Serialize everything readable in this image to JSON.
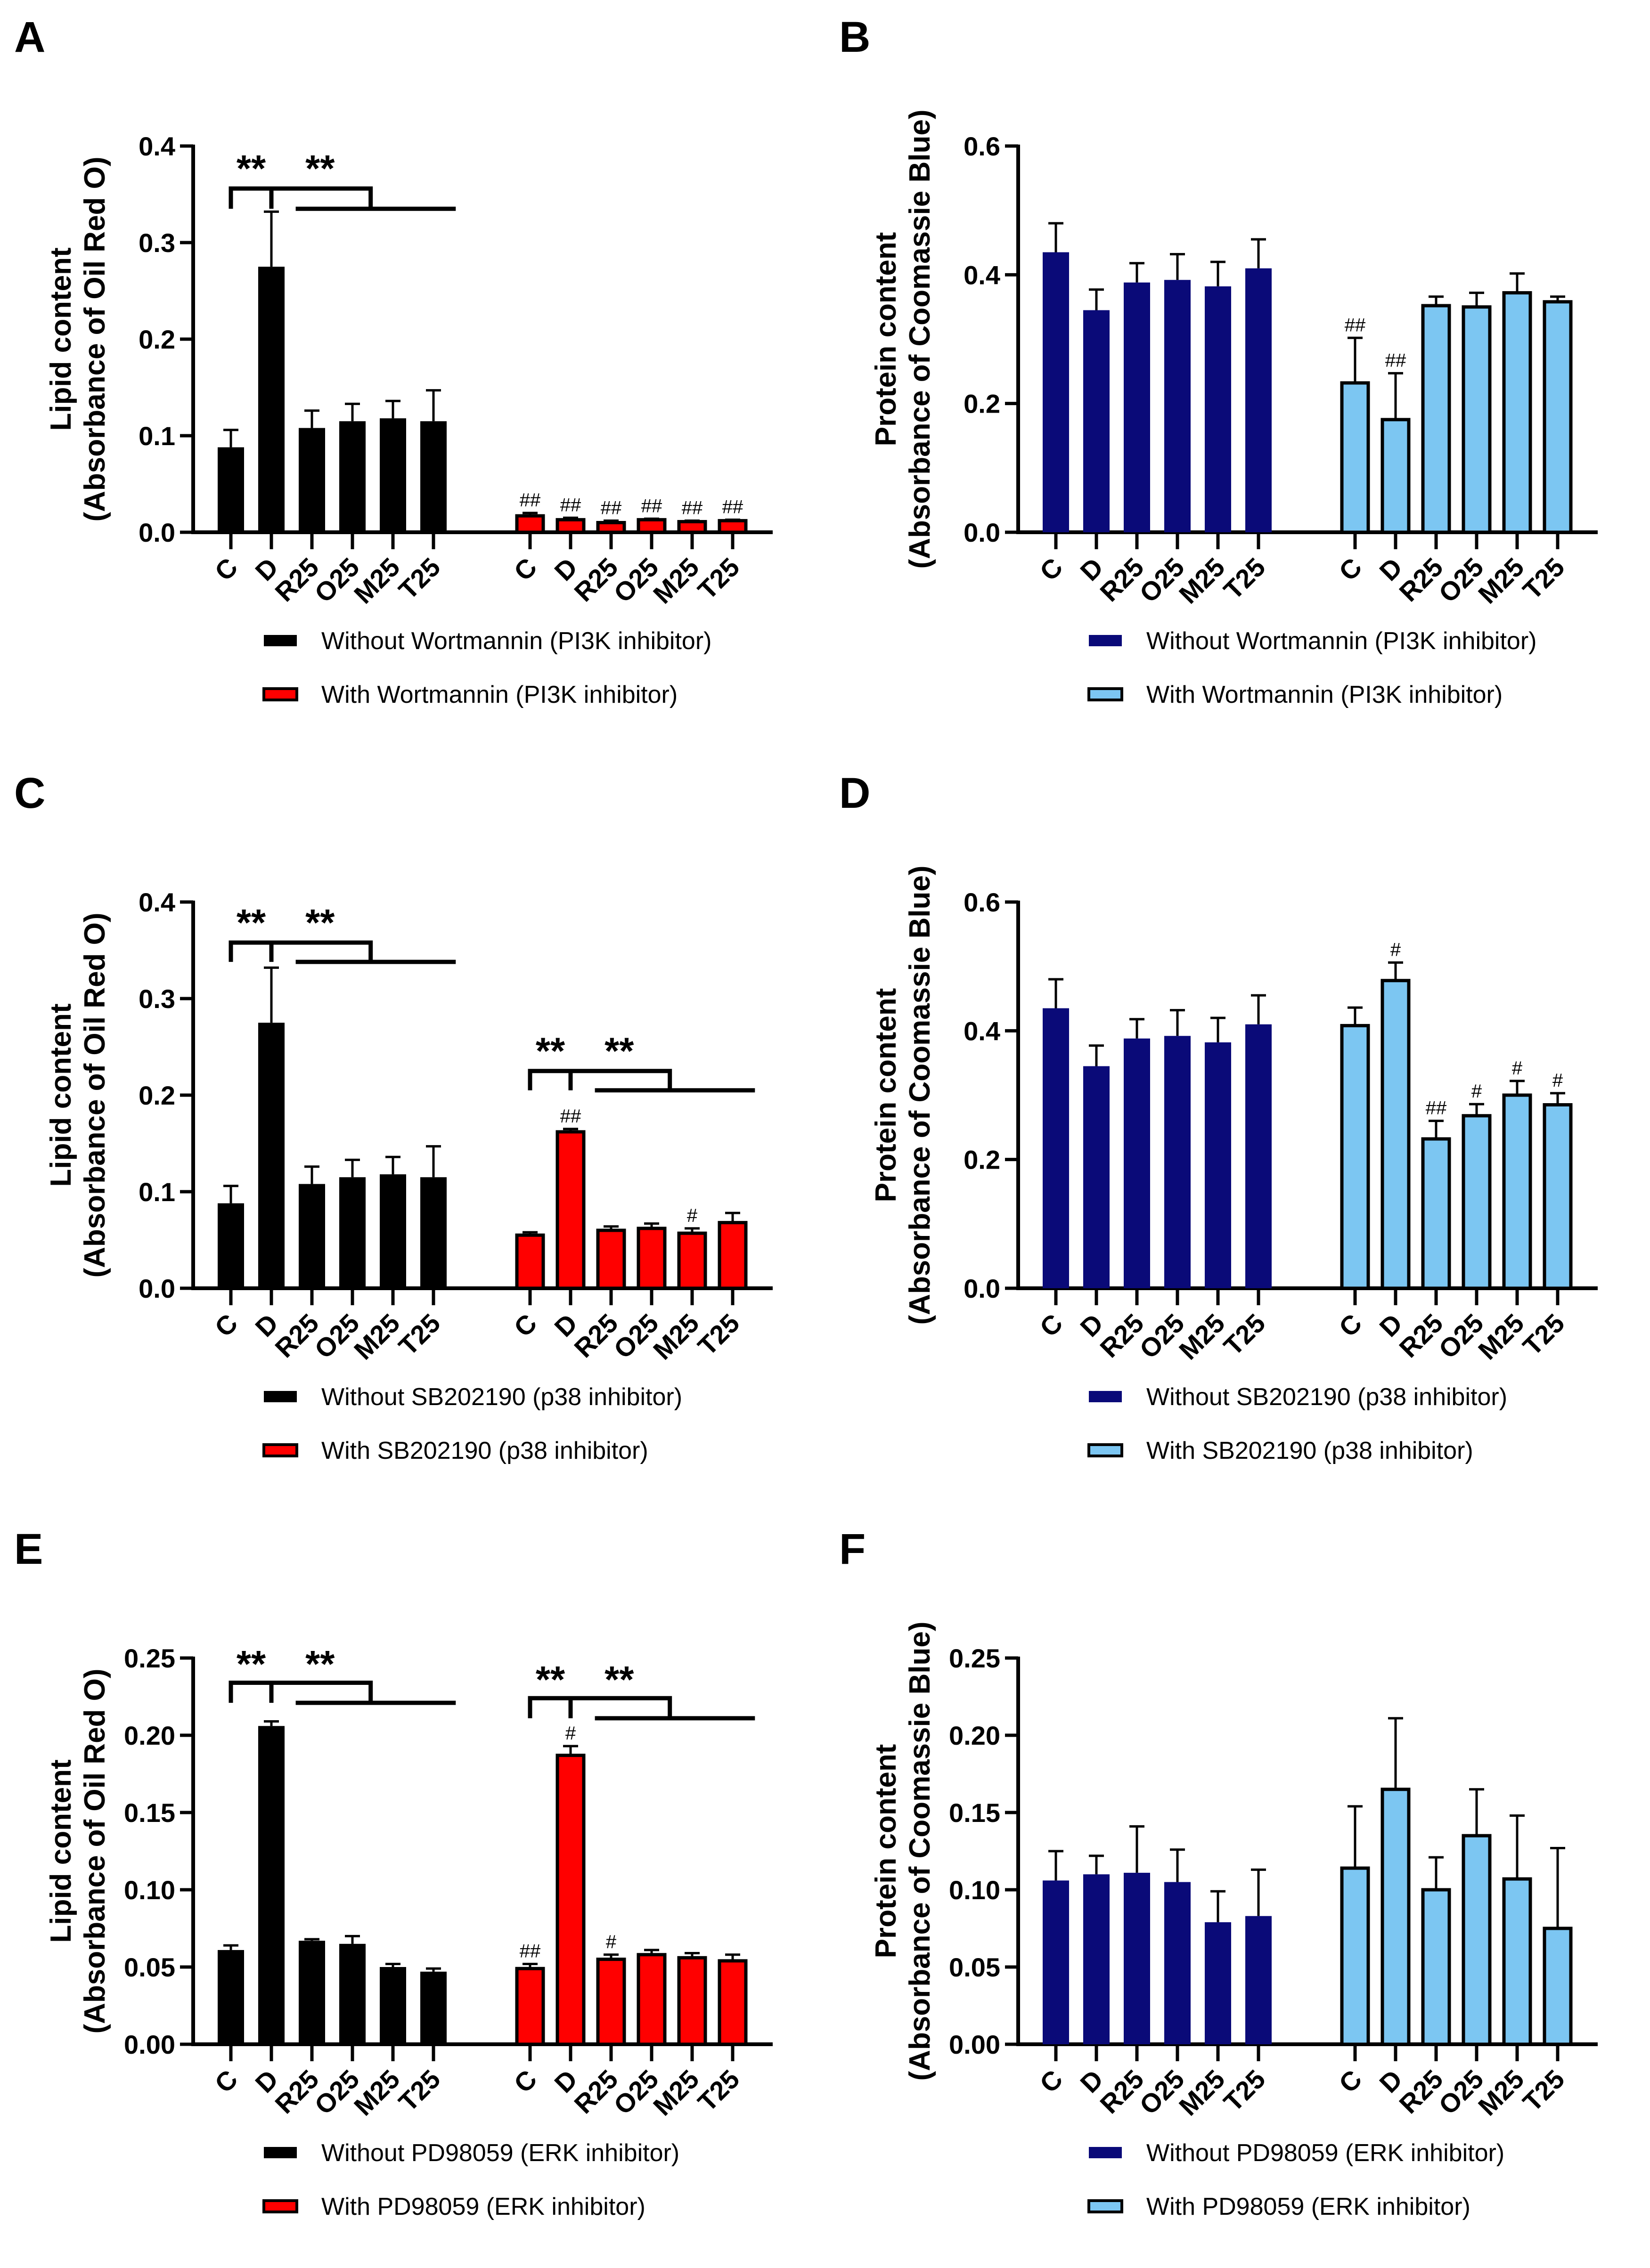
{
  "colors": {
    "black": "#000000",
    "red": "#ff0000",
    "navy": "#0a0a78",
    "lightblue": "#7cc6f2"
  },
  "chart_data": [
    {
      "panel": "A",
      "type": "bar",
      "ylabel": [
        "Lipid content",
        "(Absorbance of Oil Red O)"
      ],
      "ylim": [
        0,
        0.4
      ],
      "yticks": [
        0,
        0.1,
        0.2,
        0.3,
        0.4
      ],
      "decimals": 1,
      "categories": [
        "C",
        "D",
        "R25",
        "O25",
        "M25",
        "T25"
      ],
      "series": [
        {
          "name": "Without Wortmannin (PI3K inhibitor)",
          "color": "#000000",
          "values": [
            0.088,
            0.275,
            0.108,
            0.115,
            0.118,
            0.115
          ],
          "errors": [
            0.018,
            0.057,
            0.018,
            0.018,
            0.018,
            0.032
          ],
          "marks": [
            "",
            "",
            "",
            "",
            "",
            ""
          ]
        },
        {
          "name": "With Wortmannin (PI3K inhibitor)",
          "color": "#ff0000",
          "values": [
            0.017,
            0.013,
            0.01,
            0.013,
            0.011,
            0.012
          ],
          "errors": [
            0.003,
            0.002,
            0.002,
            0.001,
            0.001,
            0.001
          ],
          "marks": [
            "##",
            "##",
            "##",
            "##",
            "##",
            "##"
          ]
        }
      ],
      "significance": [
        {
          "group": 0,
          "label": "**",
          "top": 0.356,
          "bottom": 0.335,
          "stars": 0.383
        }
      ]
    },
    {
      "panel": "B",
      "type": "bar",
      "ylabel": [
        "Protein content",
        "(Absorbance of Coomassie Blue)"
      ],
      "ylim": [
        0,
        0.6
      ],
      "yticks": [
        0,
        0.2,
        0.4,
        0.6
      ],
      "decimals": 1,
      "categories": [
        "C",
        "D",
        "R25",
        "O25",
        "M25",
        "T25"
      ],
      "series": [
        {
          "name": "Without Wortmannin (PI3K inhibitor)",
          "color": "#0a0a78",
          "values": [
            0.435,
            0.345,
            0.388,
            0.392,
            0.382,
            0.41
          ],
          "errors": [
            0.045,
            0.032,
            0.03,
            0.04,
            0.038,
            0.045
          ],
          "marks": [
            "",
            "",
            "",
            "",
            "",
            ""
          ]
        },
        {
          "name": "With Wortmannin (PI3K inhibitor)",
          "color": "#7cc6f2",
          "values": [
            0.232,
            0.175,
            0.352,
            0.35,
            0.372,
            0.358
          ],
          "errors": [
            0.07,
            0.072,
            0.014,
            0.022,
            0.03,
            0.008
          ],
          "marks": [
            "##",
            "##",
            "",
            "",
            "",
            ""
          ]
        }
      ],
      "significance": []
    },
    {
      "panel": "C",
      "type": "bar",
      "ylabel": [
        "Lipid content",
        "(Absorbance of Oil Red O)"
      ],
      "ylim": [
        0,
        0.4
      ],
      "yticks": [
        0,
        0.1,
        0.2,
        0.3,
        0.4
      ],
      "decimals": 1,
      "categories": [
        "C",
        "D",
        "R25",
        "O25",
        "M25",
        "T25"
      ],
      "series": [
        {
          "name": "Without SB202190 (p38 inhibitor)",
          "color": "#000000",
          "values": [
            0.088,
            0.275,
            0.108,
            0.115,
            0.118,
            0.115
          ],
          "errors": [
            0.018,
            0.057,
            0.018,
            0.018,
            0.018,
            0.032
          ],
          "marks": [
            "",
            "",
            "",
            "",
            "",
            ""
          ]
        },
        {
          "name": "With SB202190 (p38 inhibitor)",
          "color": "#ff0000",
          "values": [
            0.055,
            0.162,
            0.06,
            0.062,
            0.057,
            0.068
          ],
          "errors": [
            0.003,
            0.003,
            0.004,
            0.005,
            0.005,
            0.01
          ],
          "marks": [
            "",
            "##",
            "",
            "",
            "#",
            ""
          ]
        }
      ],
      "significance": [
        {
          "group": 0,
          "label": "**",
          "top": 0.358,
          "bottom": 0.338,
          "stars": 0.385
        },
        {
          "group": 1,
          "label": "**",
          "top": 0.225,
          "bottom": 0.205,
          "stars": 0.252
        }
      ]
    },
    {
      "panel": "D",
      "type": "bar",
      "ylabel": [
        "Protein content",
        "(Absorbance of Coomassie Blue)"
      ],
      "ylim": [
        0,
        0.6
      ],
      "yticks": [
        0,
        0.2,
        0.4,
        0.6
      ],
      "decimals": 1,
      "categories": [
        "C",
        "D",
        "R25",
        "O25",
        "M25",
        "T25"
      ],
      "series": [
        {
          "name": "Without SB202190 (p38 inhibitor)",
          "color": "#0a0a78",
          "values": [
            0.435,
            0.345,
            0.388,
            0.392,
            0.382,
            0.41
          ],
          "errors": [
            0.045,
            0.032,
            0.03,
            0.04,
            0.038,
            0.045
          ],
          "marks": [
            "",
            "",
            "",
            "",
            "",
            ""
          ]
        },
        {
          "name": "With SB202190 (p38 inhibitor)",
          "color": "#7cc6f2",
          "values": [
            0.408,
            0.478,
            0.232,
            0.268,
            0.3,
            0.285
          ],
          "errors": [
            0.028,
            0.028,
            0.028,
            0.018,
            0.022,
            0.018
          ],
          "marks": [
            "",
            "#",
            "##",
            "#",
            "#",
            "#"
          ]
        }
      ],
      "significance": []
    },
    {
      "panel": "E",
      "type": "bar",
      "ylabel": [
        "Lipid content",
        "(Absorbance of Oil Red O)"
      ],
      "ylim": [
        0,
        0.25
      ],
      "yticks": [
        0,
        0.05,
        0.1,
        0.15,
        0.2,
        0.25
      ],
      "decimals": 2,
      "categories": [
        "C",
        "D",
        "R25",
        "O25",
        "M25",
        "T25"
      ],
      "series": [
        {
          "name": "Without PD98059 (ERK inhibitor)",
          "color": "#000000",
          "values": [
            0.061,
            0.206,
            0.067,
            0.065,
            0.05,
            0.047
          ],
          "errors": [
            0.003,
            0.003,
            0.001,
            0.005,
            0.002,
            0.002
          ],
          "marks": [
            "",
            "",
            "",
            "",
            "",
            ""
          ]
        },
        {
          "name": "With PD98059 (ERK inhibitor)",
          "color": "#ff0000",
          "values": [
            0.049,
            0.187,
            0.055,
            0.058,
            0.056,
            0.054
          ],
          "errors": [
            0.003,
            0.006,
            0.003,
            0.003,
            0.003,
            0.004
          ],
          "marks": [
            "##",
            "#",
            "#",
            "",
            "",
            ""
          ]
        }
      ],
      "significance": [
        {
          "group": 0,
          "label": "**",
          "top": 0.234,
          "bottom": 0.221,
          "stars": 0.25
        },
        {
          "group": 1,
          "label": "**",
          "top": 0.224,
          "bottom": 0.211,
          "stars": 0.24
        }
      ]
    },
    {
      "panel": "F",
      "type": "bar",
      "ylabel": [
        "Protein content",
        "(Absorbance of Coomassie Blue)"
      ],
      "ylim": [
        0,
        0.25
      ],
      "yticks": [
        0,
        0.05,
        0.1,
        0.15,
        0.2,
        0.25
      ],
      "decimals": 2,
      "categories": [
        "C",
        "D",
        "R25",
        "O25",
        "M25",
        "T25"
      ],
      "series": [
        {
          "name": "Without PD98059 (ERK inhibitor)",
          "color": "#0a0a78",
          "values": [
            0.106,
            0.11,
            0.111,
            0.105,
            0.079,
            0.083
          ],
          "errors": [
            0.019,
            0.012,
            0.03,
            0.021,
            0.02,
            0.03
          ],
          "marks": [
            "",
            "",
            "",
            "",
            "",
            ""
          ]
        },
        {
          "name": "With PD98059 (ERK inhibitor)",
          "color": "#7cc6f2",
          "values": [
            0.114,
            0.165,
            0.1,
            0.135,
            0.107,
            0.075
          ],
          "errors": [
            0.04,
            0.046,
            0.021,
            0.03,
            0.041,
            0.052
          ],
          "marks": [
            "",
            "",
            "",
            "",
            "",
            ""
          ]
        }
      ],
      "significance": []
    }
  ]
}
